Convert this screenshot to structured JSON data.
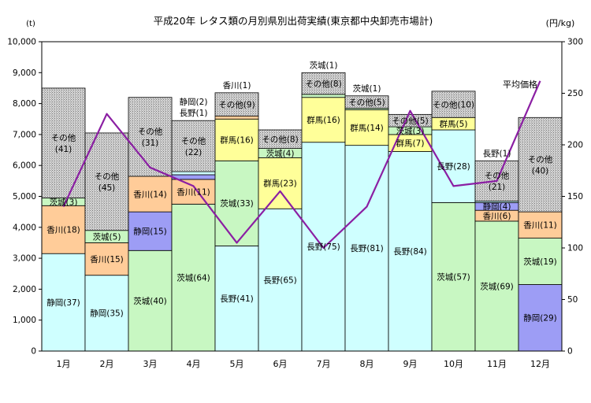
{
  "chart_data": {
    "type": "bar",
    "subtype": "stacked-bar-with-line",
    "title": "平成20年 レタス類の月別県別出荷実績(東京都中央卸売市場計)",
    "left_axis_unit": "(t)",
    "right_axis_unit": "(円/kg)",
    "ylim": [
      0,
      10000
    ],
    "y_ticks": [
      "0",
      "1,000",
      "2,000",
      "3,000",
      "4,000",
      "5,000",
      "6,000",
      "7,000",
      "8,000",
      "9,000",
      "10,000"
    ],
    "y2lim": [
      0,
      300
    ],
    "y2_ticks": [
      "0",
      "50",
      "100",
      "150",
      "200",
      "250",
      "300"
    ],
    "categories": [
      "1月",
      "2月",
      "3月",
      "4月",
      "5月",
      "6月",
      "7月",
      "8月",
      "9月",
      "10月",
      "11月",
      "12月"
    ],
    "colors": {
      "静岡": "#9d9df5",
      "茨城": "#c8f7c2",
      "長野": "#cfffff",
      "群馬": "#ffff99",
      "香川": "#ffcc99",
      "その他": "#c8c8c8",
      "line": "#8b1fa3",
      "plot_bg": "#ffffff",
      "border": "#000000"
    },
    "bars": [
      {
        "month": "1月",
        "segments": [
          {
            "pref": "静岡",
            "value": 3150,
            "label": "静岡(37)",
            "color_key": "長野"
          },
          {
            "pref": "香川",
            "value": 1550,
            "label": "香川(18)"
          },
          {
            "pref": "茨城",
            "value": 250,
            "label": "茨城(3)"
          },
          {
            "pref": "その他",
            "value": 3550,
            "label": "その他\n(41)"
          }
        ]
      },
      {
        "month": "2月",
        "segments": [
          {
            "pref": "静岡",
            "value": 2450,
            "label": "静岡(35)",
            "color_key": "長野"
          },
          {
            "pref": "香川",
            "value": 1050,
            "label": "香川(15)"
          },
          {
            "pref": "茨城",
            "value": 400,
            "label": "茨城(5)"
          },
          {
            "pref": "その他",
            "value": 3150,
            "label": "その他\n(45)"
          }
        ]
      },
      {
        "month": "3月",
        "segments": [
          {
            "pref": "茨城",
            "value": 3250,
            "label": "茨城(40)"
          },
          {
            "pref": "静岡",
            "value": 1250,
            "label": "静岡(15)"
          },
          {
            "pref": "香川",
            "value": 1150,
            "label": "香川(14)"
          },
          {
            "pref": "その他",
            "value": 2550,
            "label": "その他\n(31)"
          }
        ]
      },
      {
        "month": "4月",
        "segments": [
          {
            "pref": "茨城",
            "value": 4750,
            "label": "茨城(64)"
          },
          {
            "pref": "香川",
            "value": 800,
            "label": "香川(11)"
          },
          {
            "pref": "静岡",
            "value": 150,
            "label": "静岡(2)",
            "side_label": true
          },
          {
            "pref": "長野",
            "value": 100,
            "label": "長野(1)",
            "side_label": true
          },
          {
            "pref": "その他",
            "value": 1650,
            "label": "その他\n(22)"
          }
        ]
      },
      {
        "month": "5月",
        "segments": [
          {
            "pref": "長野",
            "value": 3400,
            "label": "長野(41)"
          },
          {
            "pref": "茨城",
            "value": 2750,
            "label": "茨城(33)"
          },
          {
            "pref": "群馬",
            "value": 1350,
            "label": "群馬(16)"
          },
          {
            "pref": "香川",
            "value": 100,
            "label": "香川(1)",
            "side_label": true
          },
          {
            "pref": "その他",
            "value": 750,
            "label": "その他(9)"
          }
        ]
      },
      {
        "month": "6月",
        "segments": [
          {
            "pref": "長野",
            "value": 4600,
            "label": "長野(65)"
          },
          {
            "pref": "群馬",
            "value": 1650,
            "label": "群馬(23)"
          },
          {
            "pref": "茨城",
            "value": 300,
            "label": "茨城(4)"
          },
          {
            "pref": "その他",
            "value": 600,
            "label": "その他(8)"
          }
        ]
      },
      {
        "month": "7月",
        "segments": [
          {
            "pref": "長野",
            "value": 6750,
            "label": "長野(75)"
          },
          {
            "pref": "群馬",
            "value": 1450,
            "label": "群馬(16)"
          },
          {
            "pref": "茨城",
            "value": 100,
            "label": "茨城(1)",
            "side_label": true
          },
          {
            "pref": "その他",
            "value": 700,
            "label": "その他(8)"
          }
        ]
      },
      {
        "month": "8月",
        "segments": [
          {
            "pref": "長野",
            "value": 6650,
            "label": "長野(81)"
          },
          {
            "pref": "群馬",
            "value": 1150,
            "label": "群馬(14)"
          },
          {
            "pref": "茨城",
            "value": 50,
            "label": "茨城(1)",
            "side_label": true
          },
          {
            "pref": "その他",
            "value": 400,
            "label": "その他(5)"
          }
        ]
      },
      {
        "month": "9月",
        "segments": [
          {
            "pref": "長野",
            "value": 6450,
            "label": "長野(84)"
          },
          {
            "pref": "群馬",
            "value": 550,
            "label": "群馬(7)"
          },
          {
            "pref": "茨城",
            "value": 250,
            "label": "茨城(3)"
          },
          {
            "pref": "その他",
            "value": 400,
            "label": "その他(5)"
          }
        ]
      },
      {
        "month": "10月",
        "segments": [
          {
            "pref": "茨城",
            "value": 4800,
            "label": "茨城(57)"
          },
          {
            "pref": "長野",
            "value": 2350,
            "label": "長野(28)"
          },
          {
            "pref": "群馬",
            "value": 400,
            "label": "群馬(5)"
          },
          {
            "pref": "その他",
            "value": 850,
            "label": "その他(10)"
          }
        ]
      },
      {
        "month": "11月",
        "segments": [
          {
            "pref": "茨城",
            "value": 4200,
            "label": "茨城(69)"
          },
          {
            "pref": "香川",
            "value": 350,
            "label": "香川(6)"
          },
          {
            "pref": "静岡",
            "value": 250,
            "label": "静岡(4)"
          },
          {
            "pref": "長野",
            "value": 50,
            "label": "長野(1)",
            "side_label": true
          },
          {
            "pref": "その他",
            "value": 1300,
            "label": "その他\n(21)"
          }
        ]
      },
      {
        "month": "12月",
        "segments": [
          {
            "pref": "静岡",
            "value": 2150,
            "label": "静岡(29)"
          },
          {
            "pref": "茨城",
            "value": 1500,
            "label": "茨城(19)"
          },
          {
            "pref": "香川",
            "value": 850,
            "label": "香川(11)"
          },
          {
            "pref": "その他",
            "value": 3050,
            "label": "その他\n(40)"
          }
        ]
      }
    ],
    "line_series": {
      "name": "平均価格",
      "values": [
        140,
        230,
        178,
        160,
        105,
        155,
        100,
        140,
        233,
        160,
        165,
        262
      ]
    }
  }
}
